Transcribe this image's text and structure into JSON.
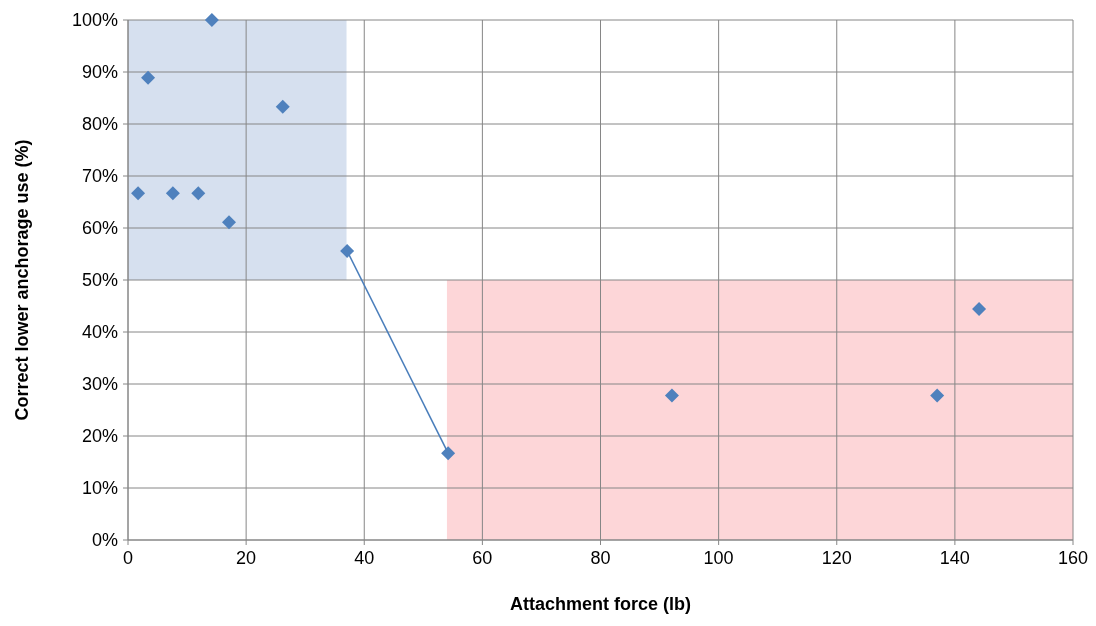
{
  "chart_data": {
    "type": "scatter",
    "xlabel": "Attachment force (lb)",
    "ylabel": "Correct lower anchorage use (%)",
    "xlim": [
      0,
      160
    ],
    "xticks": [
      0,
      20,
      40,
      60,
      80,
      100,
      120,
      140,
      160
    ],
    "ylim": [
      0,
      100
    ],
    "yticks": [
      {
        "value": 0,
        "label": "0%"
      },
      {
        "value": 10,
        "label": "10%"
      },
      {
        "value": 20,
        "label": "20%"
      },
      {
        "value": 30,
        "label": "30%"
      },
      {
        "value": 40,
        "label": "40%"
      },
      {
        "value": 50,
        "label": "50%"
      },
      {
        "value": 60,
        "label": "60%"
      },
      {
        "value": 70,
        "label": "70%"
      },
      {
        "value": 80,
        "label": "80%"
      },
      {
        "value": 90,
        "label": "90%"
      },
      {
        "value": 100,
        "label": "100%"
      }
    ],
    "grid": true,
    "marker": "diamond",
    "series": [
      {
        "type": "line",
        "marker": "none",
        "color": "#d6e0ef",
        "x": [
          0,
          37
        ],
        "values": [
          null,
          null
        ],
        "lower": [
          50,
          50
        ],
        "upper": [
          100,
          100
        ]
      },
      {
        "type": "area",
        "marker": "none",
        "color": "#fdd6d8",
        "x": [
          54,
          160
        ],
        "values": [
          50,
          50
        ]
      },
      {
        "type": "line",
        "marker": "none",
        "color": "#4a7ebb",
        "x": [
          37.1,
          54.2
        ],
        "values": [
          55.6,
          16.7
        ]
      },
      {
        "color": "#4f81bd",
        "x": [
          1.7,
          3.4,
          14.2,
          7.6,
          11.9,
          17.1,
          26.2,
          37.1,
          54.2,
          92.1,
          137,
          144.1
        ],
        "values": [
          66.7,
          88.9,
          100,
          66.7,
          66.7,
          61.1,
          83.3,
          55.6,
          16.7,
          27.8,
          27.8,
          44.4
        ]
      }
    ]
  }
}
